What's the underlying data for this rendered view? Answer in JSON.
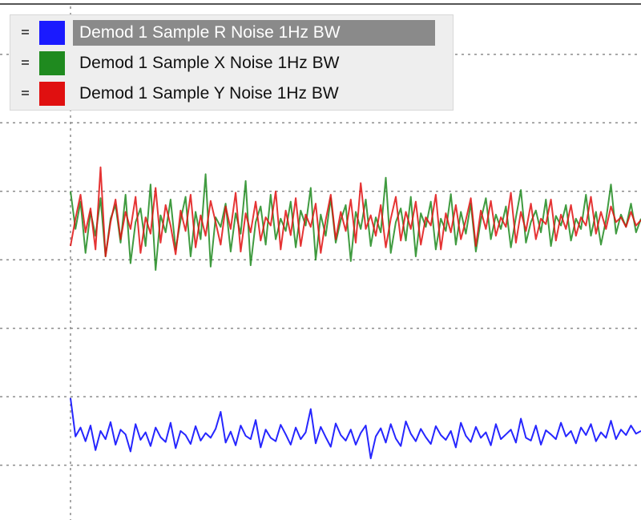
{
  "chart_data": {
    "type": "line",
    "title": "",
    "xlabel": "",
    "ylabel": "",
    "grid": true,
    "legend_placement": "top-left",
    "selected_series": 0,
    "series": [
      {
        "name": "Demod 1 Sample R Noise 1Hz BW",
        "color": "#1a1aff",
        "values": [
          0.98,
          0.42,
          0.55,
          0.35,
          0.58,
          0.22,
          0.5,
          0.38,
          0.63,
          0.3,
          0.52,
          0.45,
          0.2,
          0.6,
          0.37,
          0.48,
          0.28,
          0.55,
          0.41,
          0.34,
          0.62,
          0.25,
          0.5,
          0.44,
          0.31,
          0.57,
          0.36,
          0.47,
          0.4,
          0.53,
          0.78,
          0.33,
          0.49,
          0.29,
          0.58,
          0.43,
          0.38,
          0.66,
          0.26,
          0.52,
          0.4,
          0.35,
          0.59,
          0.45,
          0.3,
          0.55,
          0.38,
          0.48,
          0.82,
          0.32,
          0.56,
          0.41,
          0.27,
          0.61,
          0.44,
          0.36,
          0.52,
          0.3,
          0.47,
          0.58,
          0.1,
          0.42,
          0.54,
          0.33,
          0.6,
          0.39,
          0.28,
          0.64,
          0.46,
          0.35,
          0.53,
          0.41,
          0.31,
          0.57,
          0.44,
          0.37,
          0.5,
          0.26,
          0.62,
          0.43,
          0.34,
          0.56,
          0.4,
          0.48,
          0.29,
          0.6,
          0.38,
          0.45,
          0.52,
          0.33,
          0.68,
          0.4,
          0.36,
          0.58,
          0.3,
          0.51,
          0.45,
          0.38,
          0.62,
          0.42,
          0.5,
          0.32,
          0.55,
          0.44,
          0.6,
          0.35,
          0.48,
          0.4,
          0.65,
          0.38,
          0.52,
          0.44,
          0.58,
          0.46,
          0.5
        ]
      },
      {
        "name": "Demod 1 Sample X Noise 1Hz BW",
        "color": "#1f8a1f",
        "values": [
          4.0,
          3.45,
          3.85,
          3.1,
          3.7,
          3.35,
          3.9,
          3.05,
          3.6,
          3.8,
          3.25,
          3.95,
          2.95,
          3.55,
          3.75,
          3.2,
          4.1,
          2.85,
          3.65,
          3.4,
          3.88,
          3.15,
          3.58,
          3.92,
          3.05,
          3.7,
          3.3,
          4.25,
          2.9,
          3.62,
          3.48,
          3.82,
          3.12,
          3.68,
          3.38,
          4.15,
          2.92,
          3.55,
          3.78,
          3.22,
          3.95,
          3.3,
          3.6,
          3.42,
          3.85,
          3.18,
          3.72,
          3.5,
          4.05,
          3.0,
          3.66,
          3.35,
          3.9,
          3.25,
          3.58,
          3.8,
          2.98,
          3.7,
          3.45,
          3.88,
          3.2,
          3.62,
          3.4,
          4.2,
          3.1,
          3.55,
          3.75,
          3.28,
          3.92,
          3.05,
          3.68,
          3.48,
          3.85,
          3.15,
          3.6,
          3.42,
          3.96,
          3.22,
          3.7,
          3.38,
          3.82,
          3.12,
          3.58,
          3.9,
          3.3,
          3.66,
          3.45,
          3.78,
          3.18,
          3.62,
          4.02,
          3.25,
          3.55,
          3.72,
          3.4,
          3.88,
          3.2,
          3.64,
          3.5,
          3.8,
          3.28,
          3.6,
          3.45,
          3.95,
          3.35,
          3.7,
          3.22,
          3.58,
          4.1,
          3.38,
          3.66,
          3.48,
          3.82,
          3.4,
          3.6
        ]
      },
      {
        "name": "Demod 1 Sample Y Noise 1Hz BW",
        "color": "#e01010",
        "values": [
          3.2,
          3.6,
          3.95,
          3.4,
          3.75,
          3.15,
          4.35,
          3.05,
          3.55,
          3.88,
          3.3,
          3.7,
          3.45,
          3.92,
          3.1,
          3.62,
          3.38,
          4.05,
          3.25,
          3.8,
          3.5,
          3.08,
          3.72,
          3.42,
          3.95,
          3.18,
          3.65,
          3.35,
          3.86,
          3.55,
          3.22,
          3.78,
          3.45,
          3.98,
          3.12,
          3.68,
          3.4,
          3.85,
          3.28,
          3.62,
          3.5,
          4.0,
          3.15,
          3.72,
          3.36,
          3.9,
          3.2,
          3.66,
          3.48,
          3.82,
          3.1,
          3.58,
          3.95,
          3.3,
          3.7,
          3.42,
          3.88,
          3.25,
          4.12,
          3.45,
          3.65,
          3.35,
          3.8,
          3.18,
          3.6,
          3.92,
          3.28,
          3.7,
          3.45,
          3.85,
          3.22,
          3.62,
          3.5,
          3.95,
          3.15,
          3.68,
          3.4,
          3.8,
          3.3,
          3.58,
          3.9,
          3.2,
          3.72,
          3.45,
          3.86,
          3.35,
          3.62,
          3.48,
          3.98,
          3.25,
          3.7,
          3.42,
          3.82,
          3.3,
          3.6,
          3.52,
          3.88,
          3.28,
          3.66,
          3.45,
          3.8,
          3.35,
          3.62,
          3.5,
          3.92,
          3.38,
          3.7,
          3.45,
          3.78,
          3.55,
          3.62,
          3.48,
          3.7,
          3.5,
          3.58
        ]
      }
    ],
    "ylim": [
      -0.8,
      6.7
    ],
    "x_gridlines": 1,
    "y_gridlines": 7
  }
}
